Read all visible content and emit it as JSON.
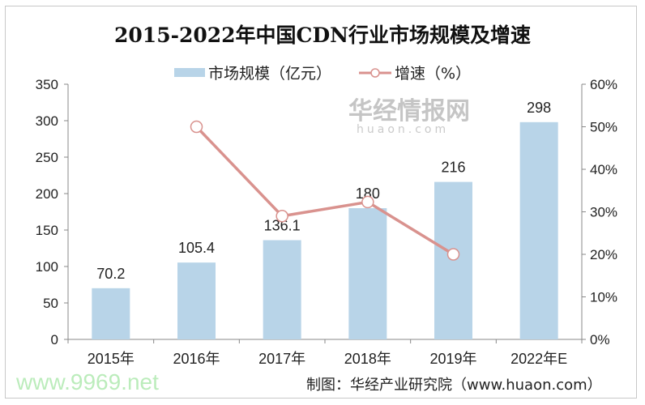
{
  "chart_data": {
    "type": "bar+line",
    "title": "2015-2022年中国CDN行业市场规模及增速",
    "categories": [
      "2015年",
      "2016年",
      "2017年",
      "2018年",
      "2019年",
      "2022年E"
    ],
    "series": [
      {
        "name": "市场规模（亿元）",
        "type": "bar",
        "axis": "left",
        "color": "#b8d4e8",
        "values": [
          70.2,
          105.4,
          136.1,
          180,
          216,
          298
        ],
        "labels": [
          "70.2",
          "105.4",
          "136.1",
          "180",
          "216",
          "298"
        ]
      },
      {
        "name": "增速（%）",
        "type": "line",
        "axis": "right",
        "color": "#d9928e",
        "values": [
          null,
          50,
          29,
          32.3,
          20,
          null
        ]
      }
    ],
    "y_left": {
      "range": [
        0,
        350
      ],
      "ticks": [
        "0",
        "50",
        "100",
        "150",
        "200",
        "250",
        "300",
        "350"
      ]
    },
    "y_right": {
      "range": [
        0,
        60
      ],
      "ticks": [
        "0%",
        "10%",
        "20%",
        "30%",
        "40%",
        "50%",
        "60%"
      ]
    },
    "grid": false,
    "legend_position": "top"
  },
  "source": "制图：华经产业研究院（www.huaon.com）",
  "watermarks": {
    "logo_cn": "华经情报网",
    "logo_en": "huaon.com",
    "site": "www.9969.net"
  }
}
